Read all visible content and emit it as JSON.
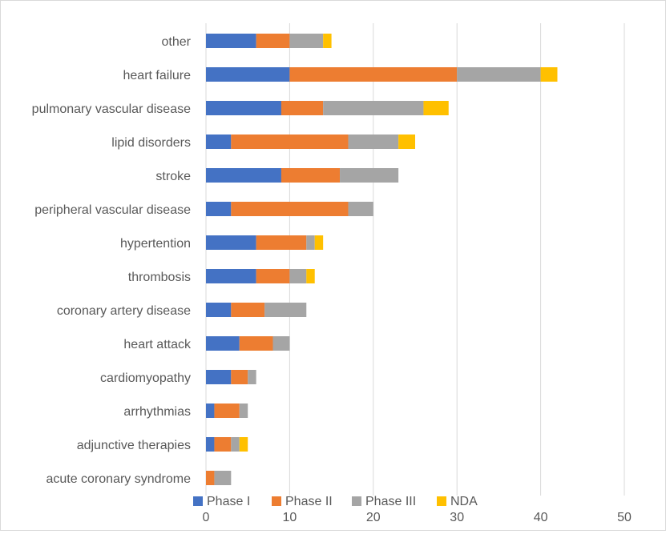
{
  "chart_data": {
    "type": "bar",
    "orientation": "horizontal",
    "stacked": true,
    "title": "",
    "xlabel": "",
    "ylabel": "",
    "xlim": [
      0,
      50
    ],
    "x_ticks": [
      "0",
      "10",
      "20",
      "30",
      "40",
      "50"
    ],
    "grid": "vertical",
    "legend_position": "bottom",
    "categories": [
      "other",
      "heart failure",
      "pulmonary vascular disease",
      "lipid disorders",
      "stroke",
      "peripheral vascular disease",
      "hypertention",
      "thrombosis",
      "coronary artery disease",
      "heart attack",
      "cardiomyopathy",
      "arrhythmias",
      "adjunctive therapies",
      "acute coronary syndrome"
    ],
    "series": [
      {
        "name": "Phase I",
        "color": "#4472C4",
        "values": [
          6,
          10,
          9,
          3,
          9,
          3,
          6,
          6,
          3,
          4,
          3,
          1,
          1,
          0
        ]
      },
      {
        "name": "Phase II",
        "color": "#ED7D31",
        "values": [
          4,
          20,
          5,
          14,
          7,
          14,
          6,
          4,
          4,
          4,
          2,
          3,
          2,
          1
        ]
      },
      {
        "name": "Phase III",
        "color": "#A5A5A5",
        "values": [
          4,
          10,
          12,
          6,
          7,
          3,
          1,
          2,
          5,
          2,
          1,
          1,
          1,
          2
        ]
      },
      {
        "name": "NDA",
        "color": "#FFC000",
        "values": [
          1,
          2,
          3,
          2,
          0,
          0,
          1,
          1,
          0,
          0,
          0,
          0,
          1,
          0
        ]
      }
    ]
  }
}
